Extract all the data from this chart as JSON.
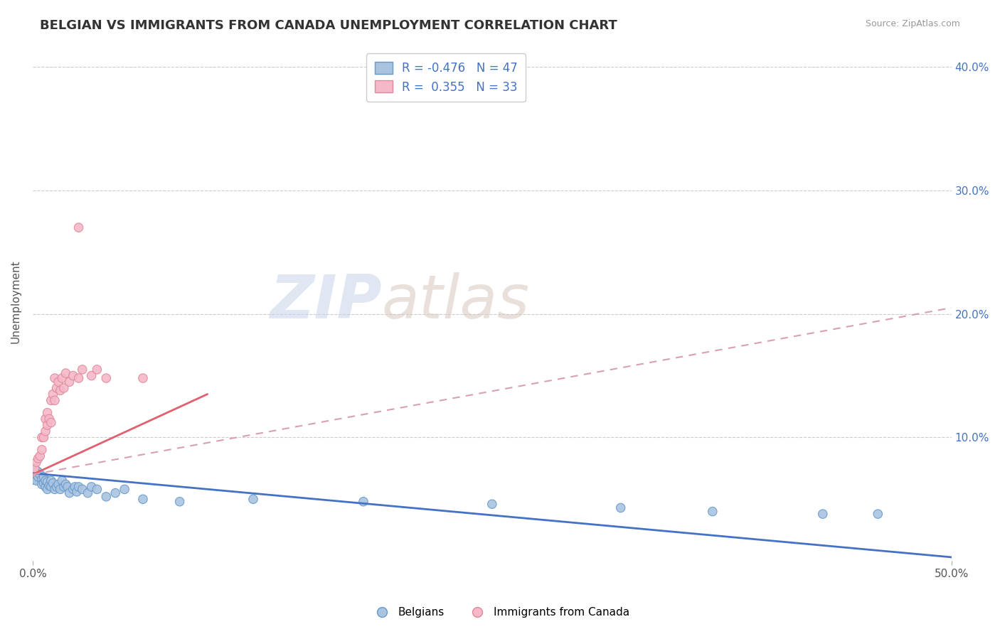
{
  "title": "BELGIAN VS IMMIGRANTS FROM CANADA UNEMPLOYMENT CORRELATION CHART",
  "source": "Source: ZipAtlas.com",
  "ylabel": "Unemployment",
  "watermark_zip": "ZIP",
  "watermark_atlas": "atlas",
  "xlim": [
    0.0,
    0.5
  ],
  "ylim": [
    0.0,
    0.42
  ],
  "belgians_color": "#aac4e0",
  "belgians_edge_color": "#6699cc",
  "belgians_line_color": "#4472c4",
  "immigrants_color": "#f4b8c8",
  "immigrants_edge_color": "#e08898",
  "immigrants_line_color": "#e06070",
  "immigrants_dash_color": "#d8a0b0",
  "background_color": "#ffffff",
  "grid_color": "#cccccc",
  "belgians_scatter": [
    [
      0.0,
      0.07
    ],
    [
      0.001,
      0.068
    ],
    [
      0.002,
      0.065
    ],
    [
      0.003,
      0.068
    ],
    [
      0.003,
      0.072
    ],
    [
      0.004,
      0.07
    ],
    [
      0.005,
      0.066
    ],
    [
      0.005,
      0.062
    ],
    [
      0.006,
      0.063
    ],
    [
      0.006,
      0.068
    ],
    [
      0.007,
      0.06
    ],
    [
      0.007,
      0.065
    ],
    [
      0.008,
      0.058
    ],
    [
      0.008,
      0.064
    ],
    [
      0.009,
      0.061
    ],
    [
      0.01,
      0.065
    ],
    [
      0.01,
      0.06
    ],
    [
      0.011,
      0.063
    ],
    [
      0.012,
      0.058
    ],
    [
      0.013,
      0.06
    ],
    [
      0.014,
      0.062
    ],
    [
      0.015,
      0.058
    ],
    [
      0.016,
      0.065
    ],
    [
      0.017,
      0.06
    ],
    [
      0.018,
      0.062
    ],
    [
      0.019,
      0.06
    ],
    [
      0.02,
      0.055
    ],
    [
      0.022,
      0.058
    ],
    [
      0.023,
      0.06
    ],
    [
      0.024,
      0.056
    ],
    [
      0.025,
      0.06
    ],
    [
      0.027,
      0.058
    ],
    [
      0.03,
      0.055
    ],
    [
      0.032,
      0.06
    ],
    [
      0.035,
      0.058
    ],
    [
      0.04,
      0.052
    ],
    [
      0.045,
      0.055
    ],
    [
      0.05,
      0.058
    ],
    [
      0.06,
      0.05
    ],
    [
      0.08,
      0.048
    ],
    [
      0.12,
      0.05
    ],
    [
      0.18,
      0.048
    ],
    [
      0.25,
      0.046
    ],
    [
      0.32,
      0.043
    ],
    [
      0.37,
      0.04
    ],
    [
      0.43,
      0.038
    ],
    [
      0.46,
      0.038
    ]
  ],
  "belgians_sizes": [
    400,
    80,
    80,
    80,
    80,
    80,
    80,
    80,
    80,
    80,
    80,
    80,
    80,
    80,
    80,
    80,
    80,
    80,
    80,
    80,
    80,
    80,
    80,
    80,
    80,
    80,
    80,
    80,
    80,
    80,
    80,
    80,
    80,
    80,
    80,
    80,
    80,
    80,
    80,
    80,
    80,
    80,
    80,
    80,
    80,
    80,
    80
  ],
  "immigrants_scatter": [
    [
      0.0,
      0.072
    ],
    [
      0.001,
      0.075
    ],
    [
      0.002,
      0.08
    ],
    [
      0.003,
      0.083
    ],
    [
      0.004,
      0.085
    ],
    [
      0.005,
      0.09
    ],
    [
      0.005,
      0.1
    ],
    [
      0.006,
      0.1
    ],
    [
      0.007,
      0.105
    ],
    [
      0.007,
      0.115
    ],
    [
      0.008,
      0.11
    ],
    [
      0.008,
      0.12
    ],
    [
      0.009,
      0.115
    ],
    [
      0.01,
      0.112
    ],
    [
      0.01,
      0.13
    ],
    [
      0.011,
      0.135
    ],
    [
      0.012,
      0.13
    ],
    [
      0.012,
      0.148
    ],
    [
      0.013,
      0.14
    ],
    [
      0.014,
      0.145
    ],
    [
      0.015,
      0.138
    ],
    [
      0.016,
      0.148
    ],
    [
      0.017,
      0.14
    ],
    [
      0.018,
      0.152
    ],
    [
      0.02,
      0.145
    ],
    [
      0.022,
      0.15
    ],
    [
      0.025,
      0.148
    ],
    [
      0.027,
      0.155
    ],
    [
      0.032,
      0.15
    ],
    [
      0.035,
      0.155
    ],
    [
      0.04,
      0.148
    ],
    [
      0.025,
      0.27
    ],
    [
      0.06,
      0.148
    ]
  ],
  "immigrants_sizes": [
    80,
    80,
    80,
    80,
    80,
    80,
    80,
    80,
    80,
    80,
    80,
    80,
    80,
    80,
    80,
    80,
    80,
    80,
    80,
    80,
    80,
    80,
    80,
    80,
    80,
    80,
    80,
    80,
    80,
    80,
    80,
    80,
    80
  ],
  "bel_line": [
    [
      0.0,
      0.071
    ],
    [
      0.5,
      0.003
    ]
  ],
  "imm_line_solid": [
    [
      0.0,
      0.07
    ],
    [
      0.095,
      0.135
    ]
  ],
  "imm_line_dash": [
    [
      0.0,
      0.07
    ],
    [
      0.5,
      0.205
    ]
  ],
  "title_fontsize": 13,
  "axis_fontsize": 11,
  "tick_fontsize": 11
}
